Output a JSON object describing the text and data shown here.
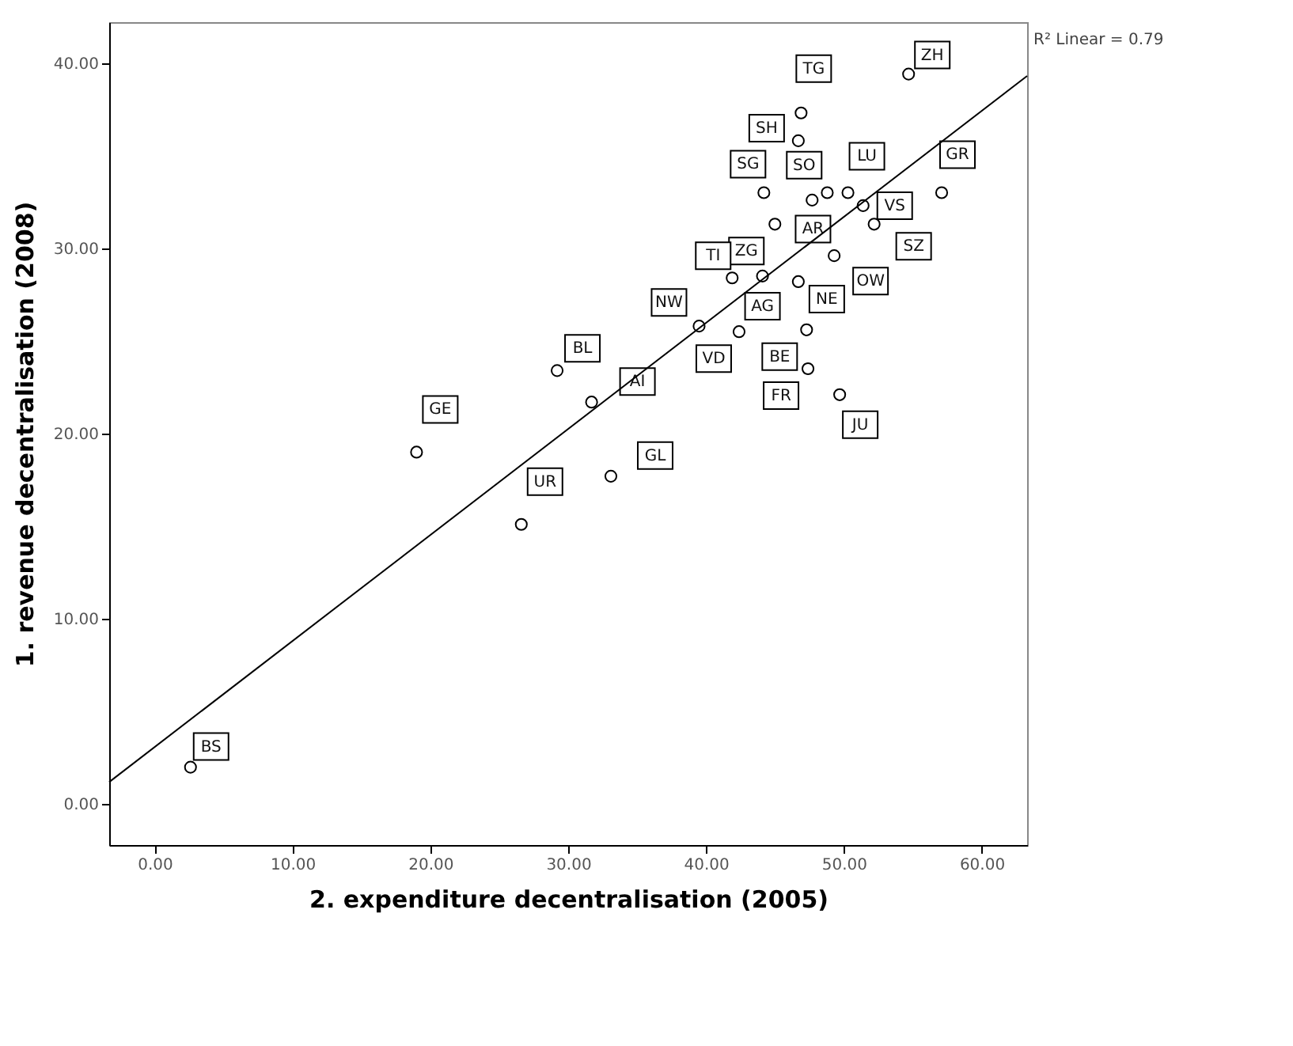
{
  "chart_data": {
    "type": "scatter",
    "xlabel": "2. expenditure decentralisation (2005)",
    "ylabel": "1. revenue decentralisation (2008)",
    "xlim": [
      -3.3,
      63.3
    ],
    "ylim": [
      -2.2,
      42.2
    ],
    "xticks": [
      {
        "value": 0,
        "label": "0.00"
      },
      {
        "value": 10,
        "label": "10.00"
      },
      {
        "value": 20,
        "label": "20.00"
      },
      {
        "value": 30,
        "label": "30.00"
      },
      {
        "value": 40,
        "label": "40.00"
      },
      {
        "value": 50,
        "label": "50.00"
      },
      {
        "value": 60,
        "label": "60.00"
      }
    ],
    "yticks": [
      {
        "value": 0,
        "label": "0.00"
      },
      {
        "value": 10,
        "label": "10.00"
      },
      {
        "value": 20,
        "label": "20.00"
      },
      {
        "value": 30,
        "label": "30.00"
      },
      {
        "value": 40,
        "label": "40.00"
      }
    ],
    "grid": false,
    "legend": false,
    "series": [
      {
        "type": "scatter",
        "color": "#000000",
        "marker": "circle",
        "x": [
          54.7,
          46.9,
          46.7,
          44.2,
          47.7,
          48.8,
          50.3,
          51.4,
          57.1,
          52.2,
          45.0,
          49.3,
          41.9,
          44.1,
          46.7,
          39.5,
          42.4,
          47.3,
          47.4,
          49.7,
          29.2,
          31.7,
          19.0,
          33.1,
          26.6,
          2.6
        ],
        "values": [
          39.4,
          37.3,
          35.8,
          33.0,
          32.6,
          33.0,
          33.0,
          32.3,
          33.0,
          31.3,
          31.3,
          29.6,
          28.4,
          28.5,
          28.2,
          25.8,
          25.5,
          25.6,
          23.5,
          22.1,
          23.4,
          21.7,
          19.0,
          17.7,
          15.1,
          2.0
        ]
      },
      {
        "type": "line",
        "color": "#000000",
        "marker": "none",
        "x": [
          -3.3,
          63.3
        ],
        "values": [
          1.2,
          39.3
        ]
      }
    ],
    "annotations": [
      {
        "text": "ZH",
        "x": 54.7,
        "y": 39.4
      },
      {
        "text": "TG",
        "x": 46.9,
        "y": 37.3
      },
      {
        "text": "SH",
        "x": 46.7,
        "y": 35.8
      },
      {
        "text": "SG",
        "x": 44.2,
        "y": 33.0
      },
      {
        "text": "SO",
        "x": 47.7,
        "y": 32.6
      },
      {
        "text": "AR",
        "x": 48.8,
        "y": 33.0
      },
      {
        "text": "LU",
        "x": 50.3,
        "y": 33.0
      },
      {
        "text": "VS",
        "x": 51.4,
        "y": 32.3
      },
      {
        "text": "GR",
        "x": 57.1,
        "y": 33.0
      },
      {
        "text": "SZ",
        "x": 52.2,
        "y": 31.3
      },
      {
        "text": "ZG",
        "x": 45.0,
        "y": 31.3
      },
      {
        "text": "OW",
        "x": 49.3,
        "y": 29.6
      },
      {
        "text": "TI",
        "x": 41.9,
        "y": 28.4
      },
      {
        "text": "AG",
        "x": 44.1,
        "y": 28.5
      },
      {
        "text": "NE",
        "x": 46.7,
        "y": 28.2
      },
      {
        "text": "NW",
        "x": 39.5,
        "y": 25.8
      },
      {
        "text": "VD",
        "x": 42.4,
        "y": 25.5
      },
      {
        "text": "BE",
        "x": 47.3,
        "y": 25.6
      },
      {
        "text": "FR",
        "x": 47.4,
        "y": 23.5
      },
      {
        "text": "JU",
        "x": 49.7,
        "y": 22.1
      },
      {
        "text": "BL",
        "x": 29.2,
        "y": 23.4
      },
      {
        "text": "AI",
        "x": 31.7,
        "y": 21.7
      },
      {
        "text": "GE",
        "x": 19.0,
        "y": 19.0
      },
      {
        "text": "GL",
        "x": 33.1,
        "y": 17.7
      },
      {
        "text": "UR",
        "x": 26.6,
        "y": 15.1
      },
      {
        "text": "BS",
        "x": 2.6,
        "y": 2.0
      },
      "R² Linear = 0.79"
    ]
  }
}
